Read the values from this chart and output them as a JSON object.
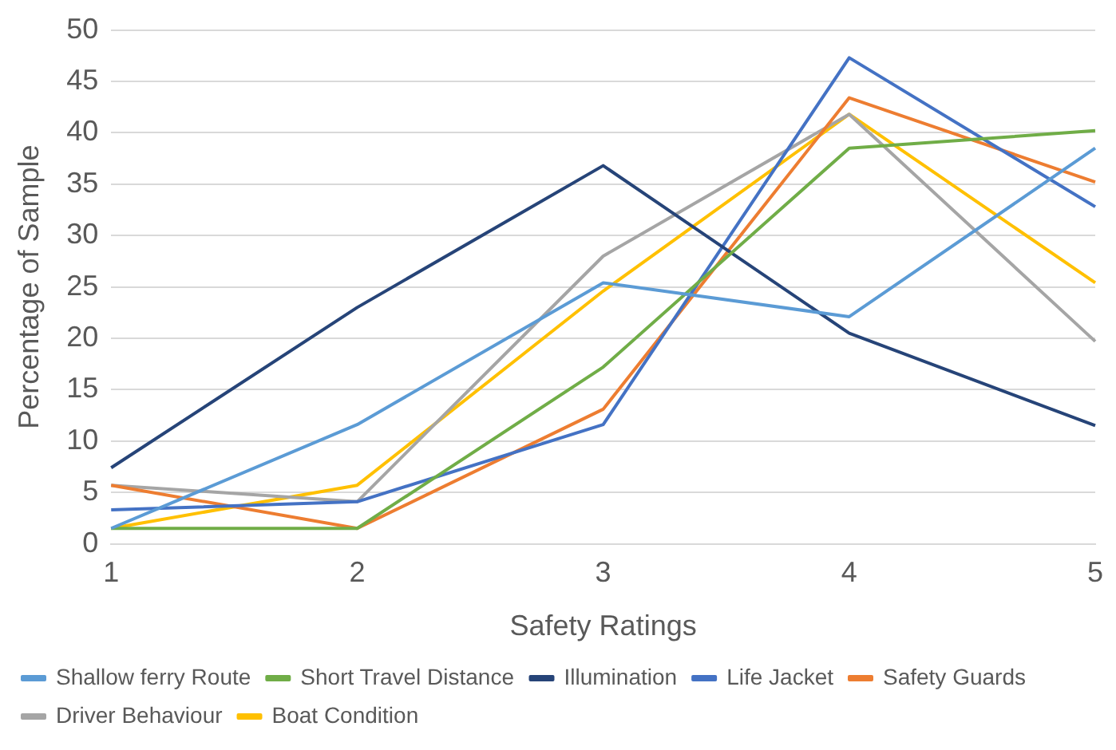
{
  "chart_data": {
    "type": "line",
    "xlabel": "Safety Ratings",
    "ylabel": "Percentage of Sample",
    "categories": [
      "1",
      "2",
      "3",
      "4",
      "5"
    ],
    "ylim": [
      0,
      50
    ],
    "yticks": [
      0,
      5,
      10,
      15,
      20,
      25,
      30,
      35,
      40,
      45,
      50
    ],
    "grid": "y",
    "legend": "bottom",
    "marker": "none",
    "line_style": "solid",
    "series": [
      {
        "name": "Shallow ferry Route",
        "color": "#5b9bd5",
        "values": [
          1.5,
          11.6,
          25.4,
          22.1,
          38.5
        ]
      },
      {
        "name": "Short Travel Distance",
        "color": "#70ad47",
        "values": [
          1.5,
          1.5,
          17.2,
          38.5,
          40.2
        ]
      },
      {
        "name": "Illumination",
        "color": "#264478",
        "values": [
          7.4,
          23,
          36.8,
          20.5,
          11.5
        ]
      },
      {
        "name": "Life Jacket",
        "color": "#4472c4",
        "values": [
          3.3,
          4.1,
          11.6,
          47.3,
          32.8
        ]
      },
      {
        "name": "Safety Guards",
        "color": "#ed7d31",
        "values": [
          5.7,
          1.5,
          13.1,
          43.4,
          35.2
        ]
      },
      {
        "name": "Driver Behaviour",
        "color": "#a5a5a5",
        "values": [
          5.7,
          4.1,
          28,
          41.8,
          19.7
        ]
      },
      {
        "name": "Boat Condition",
        "color": "#ffc000",
        "values": [
          1.5,
          5.7,
          24.6,
          41.8,
          25.4
        ]
      }
    ]
  }
}
